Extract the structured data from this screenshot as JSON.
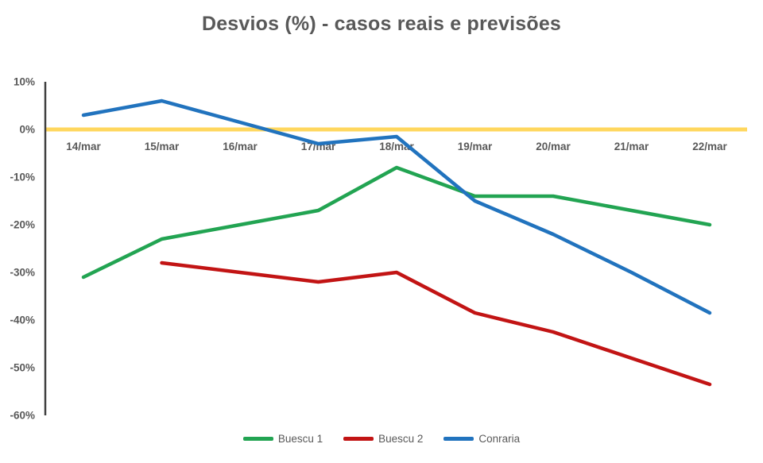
{
  "chart_data": {
    "type": "line",
    "title": "Desvios (%) - casos reais e previsões",
    "categories": [
      "14/mar",
      "15/mar",
      "16/mar",
      "17/mar",
      "18/mar",
      "19/mar",
      "20/mar",
      "21/mar",
      "22/mar"
    ],
    "series": [
      {
        "name": "Buescu 1",
        "color": "#22A452",
        "values": [
          -31,
          -23,
          -20,
          -17,
          -8,
          -14,
          -14,
          -17,
          -20
        ]
      },
      {
        "name": "Buescu 2",
        "color": "#C21414",
        "values": [
          null,
          -28,
          -30,
          -32,
          -30,
          -38.5,
          -42.5,
          -48,
          -53.5
        ]
      },
      {
        "name": "Conraria",
        "color": "#2173BE",
        "values": [
          3,
          6,
          1.5,
          -3,
          -1.5,
          -15,
          -22,
          -30,
          -38.5
        ]
      }
    ],
    "xlabel": "",
    "ylabel": "",
    "ylim": [
      -60,
      10
    ],
    "y_ticks": [
      {
        "value": 10,
        "label": "10%"
      },
      {
        "value": 0,
        "label": "0%"
      },
      {
        "value": -10,
        "label": "-10%"
      },
      {
        "value": -20,
        "label": "-20%"
      },
      {
        "value": -30,
        "label": "-30%"
      },
      {
        "value": -40,
        "label": "-40%"
      },
      {
        "value": -50,
        "label": "-50%"
      },
      {
        "value": -60,
        "label": "-60%"
      }
    ],
    "zero_line": {
      "value": 0,
      "color": "#FFD75E"
    },
    "grid": false,
    "legend_position": "bottom",
    "axis_color": "#404040",
    "label_color": "#595959"
  }
}
